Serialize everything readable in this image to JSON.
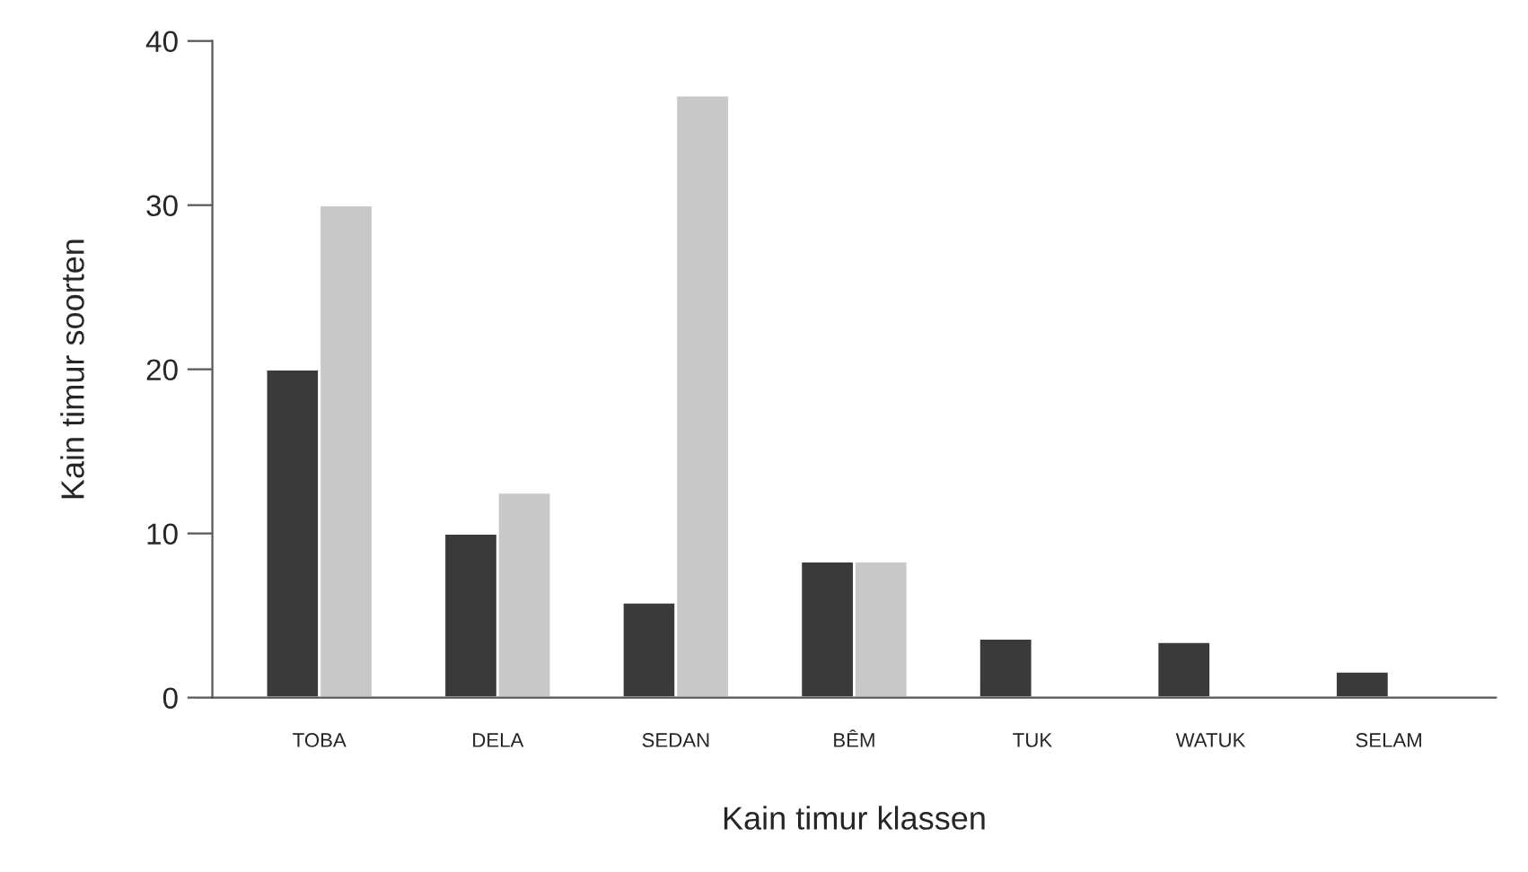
{
  "chart_data": {
    "type": "bar",
    "xlabel": "Kain timur klassen",
    "ylabel": "Kain timur soorten",
    "categories": [
      "TOBA",
      "DELA",
      "SEDAN",
      "BÊM",
      "TUK",
      "WATUK",
      "SELAM"
    ],
    "series": [
      {
        "color": "#3a3a3a",
        "values": [
          20,
          10,
          5.8,
          8.3,
          3.6,
          3.4,
          1.6
        ]
      },
      {
        "color": "#c8c8c8",
        "values": [
          30,
          12.5,
          36.7,
          8.3,
          null,
          null,
          null
        ]
      }
    ],
    "ylim": [
      0,
      40
    ],
    "yticks": [
      0,
      10,
      20,
      30,
      40
    ],
    "grid": false,
    "legend": false
  }
}
